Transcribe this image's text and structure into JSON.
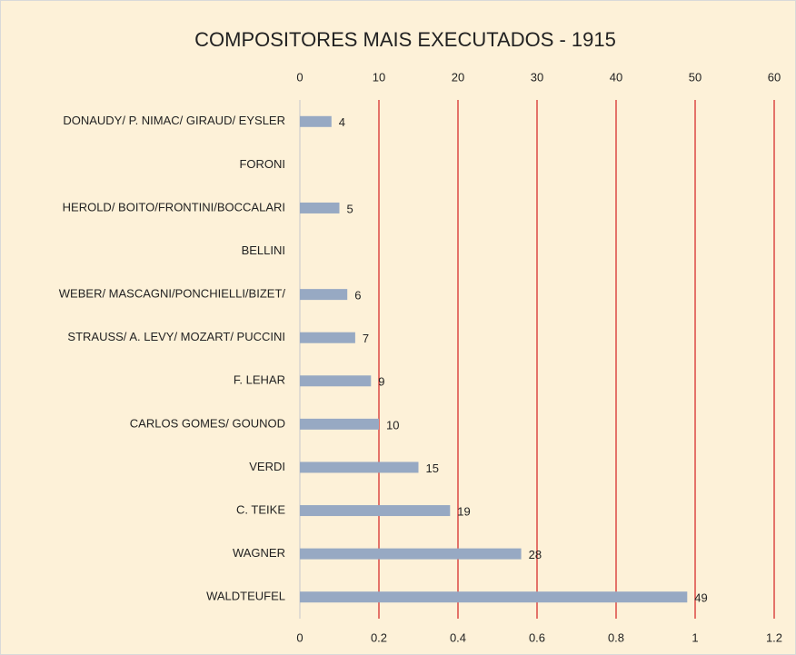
{
  "chart_data": {
    "type": "bar",
    "orientation": "horizontal",
    "title": "COMPOSITORES MAIS EXECUTADOS - 1915",
    "categories": [
      "DONAUDY/ P. NIMAC/ GIRAUD/ EYSLER",
      "FORONI",
      "HEROLD/ BOITO/FRONTINI/BOCCALARI",
      "BELLINI",
      "WEBER/ MASCAGNI/PONCHIELLI/BIZET/",
      "STRAUSS/ A. LEVY/ MOZART/ PUCCINI",
      "F. LEHAR",
      "CARLOS GOMES/ GOUNOD",
      "VERDI",
      "C. TEIKE",
      "WAGNER",
      "WALDTEUFEL"
    ],
    "values": [
      4,
      null,
      5,
      null,
      6,
      7,
      9,
      10,
      15,
      19,
      28,
      49
    ],
    "color": "#97a9c3",
    "xlim": [
      0,
      60
    ],
    "xticks": [
      0,
      10,
      20,
      30,
      40,
      50,
      60
    ],
    "x2lim": [
      0,
      1.2
    ],
    "x2ticks": [
      0,
      0.2,
      0.4,
      0.6,
      0.8,
      1,
      1.2
    ],
    "grid": true,
    "grid_color": "#d32020"
  }
}
